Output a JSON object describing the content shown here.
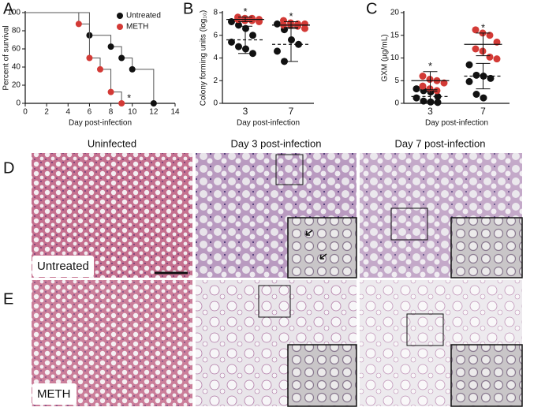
{
  "panel_labels": [
    "A",
    "B",
    "C",
    "D",
    "E"
  ],
  "chart_data": [
    {
      "type": "step",
      "ylabel": "Percent of survival",
      "xlabel": "Day post-infection",
      "xlim": [
        0,
        14
      ],
      "xticks": [
        0,
        2,
        4,
        6,
        8,
        10,
        12,
        14
      ],
      "ylim": [
        0,
        100
      ],
      "yticks": [
        0,
        20,
        40,
        60,
        80,
        100
      ],
      "legend": "upper right",
      "annotation": "*",
      "series": [
        {
          "name": "Untreated",
          "color": "#111111",
          "x": [
            0,
            6,
            8,
            9,
            10,
            12
          ],
          "values": [
            100,
            75,
            62.5,
            50,
            37.5,
            0
          ]
        },
        {
          "name": "METH",
          "color": "#d33a36",
          "x": [
            0,
            5,
            6,
            7,
            8,
            9
          ],
          "values": [
            100,
            87.5,
            50,
            37.5,
            12.5,
            0
          ]
        }
      ]
    },
    {
      "type": "dot",
      "ylabel": "Colony forming units (log₁₀)",
      "xlabel": "Day post-infection",
      "categories": [
        "3",
        "7"
      ],
      "ylim": [
        0,
        8
      ],
      "yticks": [
        0,
        2,
        4,
        6,
        8
      ],
      "annotations": [
        "*",
        "*"
      ],
      "series": [
        {
          "color": "#111111",
          "dashed": true,
          "values": [
            [
              7.2,
              6.9,
              6.6,
              6.0,
              5.4,
              5.0,
              4.8,
              4.4
            ],
            [
              7.0,
              6.5,
              5.6,
              5.2,
              4.6,
              3.7
            ]
          ],
          "mean": [
            5.6,
            5.2
          ],
          "sd": [
            1.2,
            1.5
          ]
        },
        {
          "color": "#d33a36",
          "dashed": false,
          "values": [
            [
              7.6,
              7.5,
              7.5,
              7.4,
              7.4,
              7.3,
              7.3,
              7.2
            ],
            [
              7.3,
              7.1,
              7.0,
              7.0,
              6.9,
              6.9,
              6.8,
              6.6
            ]
          ],
          "mean": [
            7.4,
            6.9
          ],
          "sd": [
            0.2,
            0.3
          ]
        }
      ]
    },
    {
      "type": "dot",
      "ylabel": "GXM (µg/mL)",
      "xlabel": "Day post-infection",
      "categories": [
        "3",
        "7"
      ],
      "ylim": [
        0,
        20
      ],
      "yticks": [
        0,
        5,
        10,
        15,
        20
      ],
      "annotations": [
        "*",
        "*"
      ],
      "series": [
        {
          "color": "#111111",
          "dashed": true,
          "values": [
            [
              3.2,
              2.8,
              2.5,
              1.5,
              1.2,
              0.5,
              0.3,
              0.2
            ],
            [
              8.5,
              6.2,
              6.0,
              5.5,
              4.8,
              2.0,
              1.2
            ]
          ],
          "mean": [
            1.5,
            6
          ],
          "sd": [
            1.2,
            2.8
          ]
        },
        {
          "color": "#d33a36",
          "dashed": false,
          "values": [
            [
              6.0,
              5.3,
              5.0,
              4.5,
              3.8,
              3.2,
              2.8
            ],
            [
              16.2,
              15.5,
              15.0,
              13.5,
              12.0,
              11.5,
              10.2,
              9.8
            ]
          ],
          "mean": [
            5,
            13
          ],
          "sd": [
            2,
            2.5
          ]
        }
      ]
    }
  ],
  "histology": {
    "columns": [
      "Uninfected",
      "Day 3 post-infection",
      "Day 7 post-infection"
    ],
    "rows": [
      "Untreated",
      "METH"
    ]
  }
}
